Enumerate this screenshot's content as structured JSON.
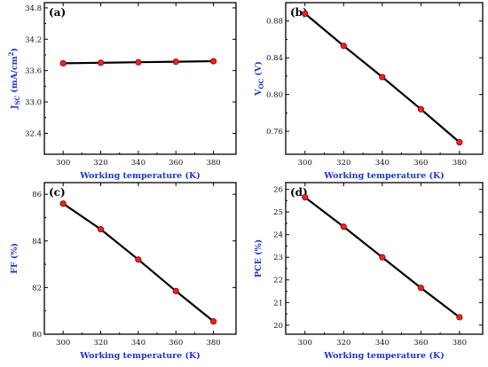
{
  "chart_data": [
    {
      "type": "line",
      "panel_label": "(a)",
      "x": [
        300,
        320,
        340,
        360,
        380
      ],
      "series": [
        {
          "values": [
            33.74,
            33.75,
            33.76,
            33.77,
            33.78
          ]
        }
      ],
      "xlabel": "Working temperature (K)",
      "ylabel": "J",
      "ylabel_sub": "SC",
      "ylabel_tail": " (mA/cm",
      "ylabel_sup": "2",
      "ylabel_close": ")",
      "xlim": [
        290,
        392
      ],
      "ylim": [
        32.0,
        34.9
      ],
      "xticks": [
        300,
        320,
        340,
        360,
        380
      ],
      "xtick_labels": [
        "300",
        "320",
        "340",
        "360",
        "380"
      ],
      "yticks": [
        32.4,
        33.0,
        33.6,
        34.2,
        34.8
      ],
      "ytick_labels": [
        "32.4",
        "33.0",
        "33.6",
        "34.2",
        "34.8"
      ],
      "grid": false,
      "colors": {
        "line": "#000000",
        "marker": "#ee2222",
        "axis_title": "#2233cc"
      }
    },
    {
      "type": "line",
      "panel_label": "(b)",
      "x": [
        300,
        320,
        340,
        360,
        380
      ],
      "series": [
        {
          "values": [
            0.888,
            0.853,
            0.819,
            0.784,
            0.748
          ]
        }
      ],
      "xlabel": "Working temperature (K)",
      "ylabel": "V",
      "ylabel_sub": "OC",
      "ylabel_tail": " (V)",
      "xlim": [
        290,
        392
      ],
      "ylim": [
        0.735,
        0.9
      ],
      "xticks": [
        300,
        320,
        340,
        360,
        380
      ],
      "xtick_labels": [
        "300",
        "320",
        "340",
        "360",
        "380"
      ],
      "yticks": [
        0.76,
        0.8,
        0.84,
        0.88
      ],
      "ytick_labels": [
        "0.76",
        "0.80",
        "0.84",
        "0.88"
      ],
      "grid": false,
      "colors": {
        "line": "#000000",
        "marker": "#ee2222",
        "axis_title": "#2233cc"
      }
    },
    {
      "type": "line",
      "panel_label": "(c)",
      "x": [
        300,
        320,
        340,
        360,
        380
      ],
      "series": [
        {
          "values": [
            85.6,
            84.5,
            83.2,
            81.85,
            80.55
          ]
        }
      ],
      "xlabel": "Working temperature (K)",
      "ylabel": "FF (%)",
      "xlim": [
        290,
        392
      ],
      "ylim": [
        80.0,
        86.5
      ],
      "xticks": [
        300,
        320,
        340,
        360,
        380
      ],
      "xtick_labels": [
        "300",
        "320",
        "340",
        "360",
        "380"
      ],
      "yticks": [
        80,
        82,
        84,
        86
      ],
      "ytick_labels": [
        "80",
        "82",
        "84",
        "86"
      ],
      "grid": false,
      "colors": {
        "line": "#000000",
        "marker": "#ee2222",
        "axis_title": "#2233cc"
      }
    },
    {
      "type": "line",
      "panel_label": "(d)",
      "x": [
        300,
        320,
        340,
        360,
        380
      ],
      "series": [
        {
          "values": [
            25.65,
            24.35,
            23.0,
            21.65,
            20.35
          ]
        }
      ],
      "xlabel": "Working temperature (K)",
      "ylabel": "PCE (%)",
      "xlim": [
        290,
        392
      ],
      "ylim": [
        19.6,
        26.3
      ],
      "xticks": [
        300,
        320,
        340,
        360,
        380
      ],
      "xtick_labels": [
        "300",
        "320",
        "340",
        "360",
        "380"
      ],
      "yticks": [
        20,
        21,
        22,
        23,
        24,
        25,
        26
      ],
      "ytick_labels": [
        "20",
        "21",
        "22",
        "23",
        "24",
        "25",
        "26"
      ],
      "grid": false,
      "colors": {
        "line": "#000000",
        "marker": "#ee2222",
        "axis_title": "#2233cc"
      }
    }
  ]
}
